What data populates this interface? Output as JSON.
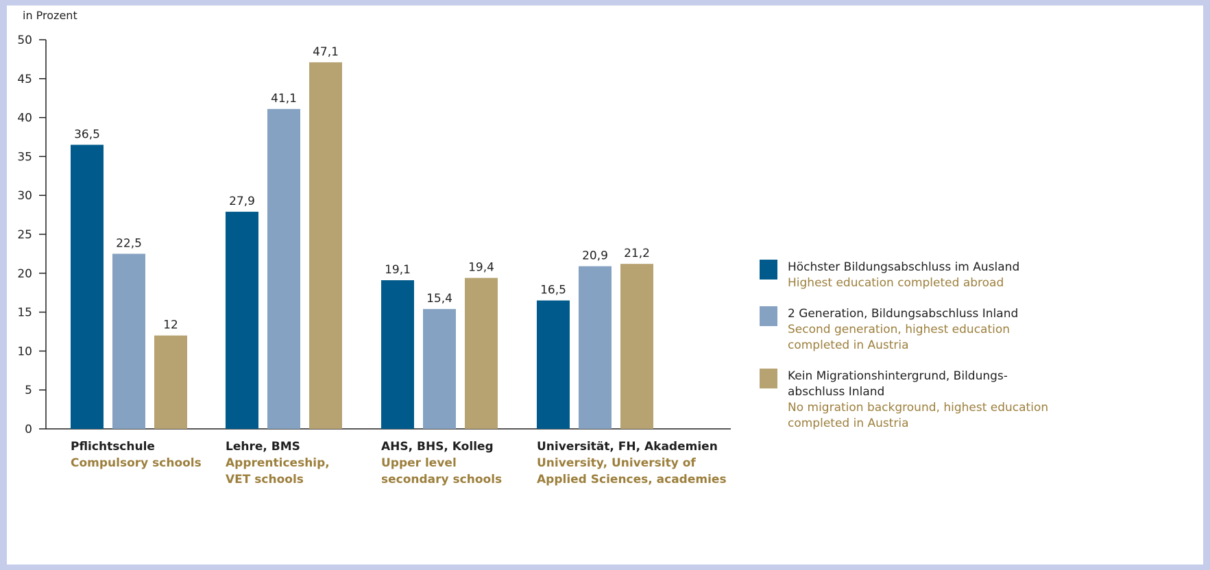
{
  "chart_data": {
    "type": "bar",
    "unit_label": "in Prozent",
    "ylim": [
      0,
      50
    ],
    "yticks": [
      0,
      5,
      10,
      15,
      20,
      25,
      30,
      35,
      40,
      45,
      50
    ],
    "grid": false,
    "legend_position": "right",
    "categories": [
      {
        "label_de": "Pflichtschule",
        "label_en": [
          "Compulsory schools"
        ]
      },
      {
        "label_de": "Lehre, BMS",
        "label_en": [
          "Apprenticeship,",
          "VET schools"
        ]
      },
      {
        "label_de": "AHS, BHS, Kolleg",
        "label_en": [
          "Upper level",
          "secondary schools"
        ]
      },
      {
        "label_de": "Universität, FH, Akademien",
        "label_en": [
          "University, University of",
          "Applied Sciences, academies"
        ]
      }
    ],
    "series": [
      {
        "name_de": [
          "Höchster Bildungsabschluss im Ausland"
        ],
        "name_en": [
          "Highest education completed abroad"
        ],
        "color": "#005b8c",
        "values": [
          36.5,
          27.9,
          19.1,
          16.5
        ],
        "labels": [
          "36,5",
          "27,9",
          "19,1",
          "16,5"
        ]
      },
      {
        "name_de": [
          "2 Generation, Bildungsabschluss Inland"
        ],
        "name_en": [
          "Second generation, highest education",
          "completed in Austria"
        ],
        "color": "#86a2c2",
        "values": [
          22.5,
          41.1,
          15.4,
          20.9
        ],
        "labels": [
          "22,5",
          "41,1",
          "15,4",
          "20,9"
        ]
      },
      {
        "name_de": [
          "Kein Migrationshintergrund, Bildungs-",
          "abschluss Inland"
        ],
        "name_en": [
          "No migration background, highest education",
          "completed in Austria"
        ],
        "color": "#b7a372",
        "values": [
          12,
          47.1,
          19.4,
          21.2
        ],
        "labels": [
          "12",
          "47,1",
          "19,4",
          "21,2"
        ]
      }
    ]
  }
}
